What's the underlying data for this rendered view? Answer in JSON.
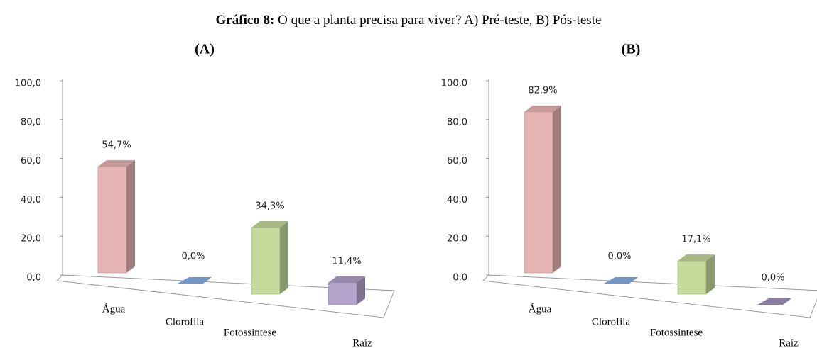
{
  "figure_title": {
    "label": "Gráfico 8:",
    "text": "O que a planta precisa para viver? A) Pré-teste, B) Pós-teste"
  },
  "chart_data": [
    {
      "type": "bar3d",
      "title": "(A)",
      "categories": [
        "Água",
        "Clorofila",
        "Fotossintese",
        "Raiz"
      ],
      "values": [
        54.7,
        0.0,
        34.3,
        11.4
      ],
      "value_labels": [
        "54,7%",
        "0,0%",
        "34,3%",
        "11,4%"
      ],
      "colors": [
        "#e6b4b3",
        "#7196c8",
        "#c4da9b",
        "#b4a3cb"
      ],
      "ylim": [
        0,
        100
      ],
      "yticks": [
        {
          "value": 0,
          "label": "0,0"
        },
        {
          "value": 20,
          "label": "20,0"
        },
        {
          "value": 40,
          "label": "40,0"
        },
        {
          "value": 60,
          "label": "60,0"
        },
        {
          "value": 80,
          "label": "80,0"
        },
        {
          "value": 100,
          "label": "100,0"
        }
      ]
    },
    {
      "type": "bar3d",
      "title": "(B)",
      "categories": [
        "Água",
        "Clorofila",
        "Fotossintese",
        "Raiz"
      ],
      "values": [
        82.9,
        0.0,
        17.1,
        0.0
      ],
      "value_labels": [
        "82,9%",
        "0,0%",
        "17,1%",
        "0,0%"
      ],
      "colors": [
        "#e6b4b3",
        "#7196c8",
        "#c4da9b",
        "#8b7ca6"
      ],
      "ylim": [
        0,
        100
      ],
      "yticks": [
        {
          "value": 0,
          "label": "0,0"
        },
        {
          "value": 20,
          "label": "20,0"
        },
        {
          "value": 40,
          "label": "40,0"
        },
        {
          "value": 60,
          "label": "60,0"
        },
        {
          "value": 80,
          "label": "80,0"
        },
        {
          "value": 100,
          "label": "100,0"
        }
      ]
    }
  ]
}
